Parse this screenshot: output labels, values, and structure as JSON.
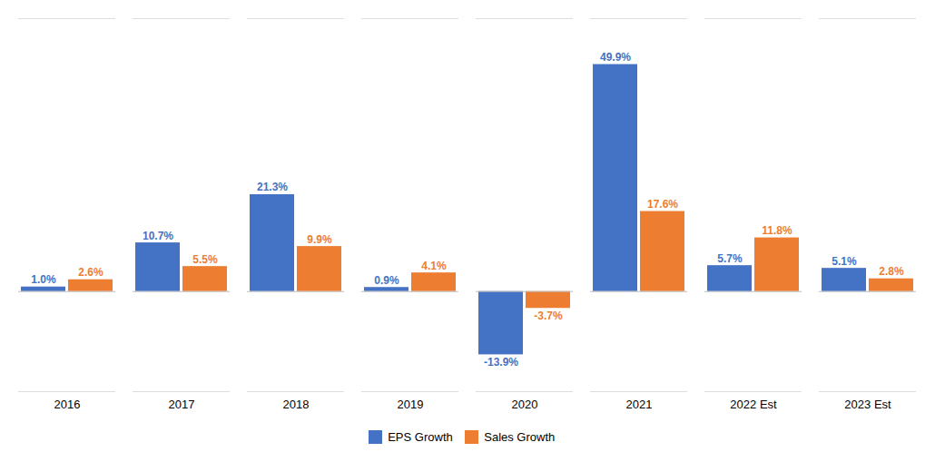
{
  "chart_data": {
    "type": "bar",
    "categories": [
      "2016",
      "2017",
      "2018",
      "2019",
      "2020",
      "2021",
      "2022 Est",
      "2023 Est"
    ],
    "series": [
      {
        "name": "EPS Growth",
        "color": "#4472C4",
        "values": [
          1.0,
          10.7,
          21.3,
          0.9,
          -13.9,
          49.9,
          5.7,
          5.1
        ],
        "value_labels": [
          "1.0%",
          "10.7%",
          "21.3%",
          "0.9%",
          "-13.9%",
          "49.9%",
          "5.7%",
          "5.1%"
        ]
      },
      {
        "name": "Sales Growth",
        "color": "#ED7D31",
        "values": [
          2.6,
          5.5,
          9.9,
          4.1,
          -3.7,
          17.6,
          11.8,
          2.8
        ],
        "value_labels": [
          "2.6%",
          "5.5%",
          "9.9%",
          "4.1%",
          "-3.7%",
          "17.6%",
          "11.8%",
          "2.8%"
        ]
      }
    ],
    "ylim": [
      -22,
      60
    ],
    "tick_labels": "x",
    "data_labels": true,
    "grid": false,
    "legend": "bottom"
  }
}
